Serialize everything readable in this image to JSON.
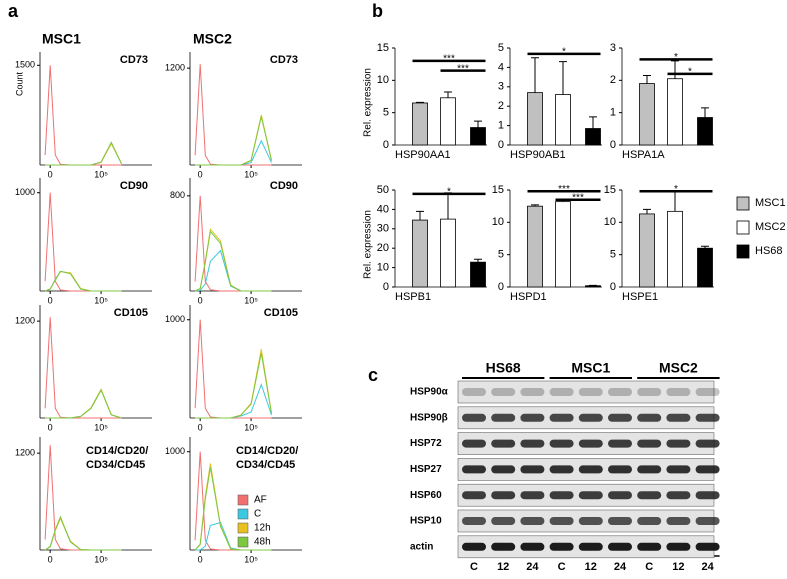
{
  "panel_labels": [
    "a",
    "b",
    "c"
  ],
  "flow_columns": [
    "MSC1",
    "MSC2"
  ],
  "chart_data": [
    {
      "type": "flow",
      "title": "CD73",
      "ylabel": "Count",
      "x": [
        -0.5,
        0,
        0.5,
        1,
        2,
        3,
        4,
        5,
        6,
        7
      ],
      "xlim": [
        -1,
        10
      ],
      "xticks": [
        0,
        {
          "value": 5,
          "label": "10⁵"
        }
      ],
      "ylim": [
        0,
        1700
      ],
      "yticks": [
        1500
      ],
      "series": [
        {
          "color": "#f07070",
          "values": [
            150,
            1500,
            150,
            10,
            0,
            0,
            0,
            0,
            0,
            0
          ]
        },
        {
          "color": "#3cc8e0",
          "values": [
            0,
            0,
            0,
            0,
            0,
            0,
            0,
            40,
            330,
            20
          ]
        },
        {
          "color": "#e8c020",
          "values": [
            0,
            0,
            0,
            0,
            0,
            0,
            0,
            40,
            320,
            20
          ]
        },
        {
          "color": "#7cc840",
          "values": [
            0,
            0,
            0,
            0,
            0,
            0,
            0,
            45,
            340,
            20
          ]
        }
      ]
    },
    {
      "type": "flow",
      "title": "CD73",
      "x": [
        -0.5,
        0,
        0.5,
        1,
        2,
        3,
        4,
        5,
        6,
        7
      ],
      "xlim": [
        -1,
        10
      ],
      "xticks": [
        0,
        {
          "value": 5,
          "label": "10⁵"
        }
      ],
      "ylim": [
        0,
        1400
      ],
      "yticks": [
        1200
      ],
      "series": [
        {
          "color": "#f07070",
          "values": [
            120,
            1250,
            120,
            10,
            0,
            0,
            0,
            0,
            0,
            0
          ]
        },
        {
          "color": "#3cc8e0",
          "values": [
            0,
            0,
            0,
            0,
            0,
            0,
            0,
            30,
            300,
            30
          ]
        },
        {
          "color": "#e8c020",
          "values": [
            0,
            0,
            0,
            0,
            0,
            0,
            0,
            60,
            620,
            60
          ]
        },
        {
          "color": "#7cc840",
          "values": [
            0,
            0,
            0,
            0,
            0,
            0,
            0,
            55,
            600,
            55
          ]
        }
      ]
    },
    {
      "type": "flow",
      "title": "CD90",
      "x": [
        -0.5,
        0,
        0.5,
        1,
        2,
        3,
        4,
        5,
        6,
        7
      ],
      "xlim": [
        -1,
        10
      ],
      "xticks": [
        0,
        {
          "value": 5,
          "label": "10⁵"
        }
      ],
      "ylim": [
        0,
        1150
      ],
      "yticks": [
        1000
      ],
      "series": [
        {
          "color": "#f07070",
          "values": [
            100,
            1000,
            100,
            10,
            0,
            0,
            0,
            0,
            0,
            0
          ]
        },
        {
          "color": "#3cc8e0",
          "values": [
            0,
            20,
            120,
            200,
            180,
            20,
            0,
            0,
            0,
            0
          ]
        },
        {
          "color": "#e8c020",
          "values": [
            0,
            20,
            115,
            195,
            185,
            25,
            0,
            0,
            0,
            0
          ]
        },
        {
          "color": "#7cc840",
          "values": [
            0,
            20,
            110,
            200,
            175,
            20,
            0,
            0,
            0,
            0
          ]
        }
      ]
    },
    {
      "type": "flow",
      "title": "CD90",
      "x": [
        -0.5,
        0,
        0.5,
        1,
        2,
        3,
        4,
        5,
        6,
        7
      ],
      "xlim": [
        -1,
        10
      ],
      "xticks": [
        0,
        {
          "value": 5,
          "label": "10⁵"
        }
      ],
      "ylim": [
        0,
        950
      ],
      "yticks": [
        800
      ],
      "series": [
        {
          "color": "#f07070",
          "values": [
            80,
            800,
            80,
            10,
            0,
            0,
            0,
            0,
            0,
            0
          ]
        },
        {
          "color": "#3cc8e0",
          "values": [
            0,
            5,
            60,
            250,
            340,
            40,
            0,
            0,
            0,
            0
          ]
        },
        {
          "color": "#e8c020",
          "values": [
            0,
            20,
            250,
            520,
            420,
            50,
            0,
            0,
            0,
            0
          ]
        },
        {
          "color": "#7cc840",
          "values": [
            0,
            20,
            240,
            500,
            400,
            45,
            0,
            0,
            0,
            0
          ]
        }
      ]
    },
    {
      "type": "flow",
      "title": "CD105",
      "x": [
        -0.5,
        0,
        0.5,
        1,
        2,
        3,
        4,
        5,
        6,
        7
      ],
      "xlim": [
        -1,
        10
      ],
      "xticks": [
        0,
        {
          "value": 5,
          "label": "10⁵"
        }
      ],
      "ylim": [
        0,
        1400
      ],
      "yticks": [
        1200
      ],
      "series": [
        {
          "color": "#f07070",
          "values": [
            120,
            1250,
            120,
            10,
            0,
            0,
            0,
            0,
            0,
            0
          ]
        },
        {
          "color": "#3cc8e0",
          "values": [
            0,
            0,
            0,
            0,
            0,
            20,
            120,
            350,
            40,
            0
          ]
        },
        {
          "color": "#e8c020",
          "values": [
            0,
            0,
            0,
            0,
            0,
            20,
            125,
            355,
            40,
            0
          ]
        },
        {
          "color": "#7cc840",
          "values": [
            0,
            0,
            0,
            0,
            0,
            20,
            118,
            345,
            40,
            0
          ]
        }
      ]
    },
    {
      "type": "flow",
      "title": "CD105",
      "x": [
        -0.5,
        0,
        0.5,
        1,
        2,
        3,
        4,
        5,
        6,
        7
      ],
      "xlim": [
        -1,
        10
      ],
      "xticks": [
        0,
        {
          "value": 5,
          "label": "10⁵"
        }
      ],
      "ylim": [
        0,
        1150
      ],
      "yticks": [
        1000
      ],
      "series": [
        {
          "color": "#f07070",
          "values": [
            100,
            1000,
            100,
            10,
            0,
            0,
            0,
            0,
            0,
            0
          ]
        },
        {
          "color": "#3cc8e0",
          "values": [
            0,
            0,
            0,
            0,
            0,
            0,
            20,
            60,
            340,
            30
          ]
        },
        {
          "color": "#e8c020",
          "values": [
            0,
            0,
            0,
            0,
            0,
            0,
            30,
            150,
            700,
            50
          ]
        },
        {
          "color": "#7cc840",
          "values": [
            0,
            0,
            0,
            0,
            0,
            0,
            28,
            140,
            660,
            45
          ]
        }
      ]
    },
    {
      "type": "flow",
      "title": [
        "CD14/CD20/",
        "CD34/CD45"
      ],
      "x": [
        -0.5,
        0,
        0.5,
        1,
        2,
        3,
        4,
        5,
        6,
        7
      ],
      "xlim": [
        -1,
        10
      ],
      "xticks": [
        0,
        {
          "value": 5,
          "label": "10⁵"
        }
      ],
      "ylim": [
        0,
        1400
      ],
      "yticks": [
        1200
      ],
      "series": [
        {
          "color": "#f07070",
          "values": [
            130,
            1300,
            130,
            15,
            0,
            0,
            0,
            0,
            0,
            0
          ]
        },
        {
          "color": "#3cc8e0",
          "values": [
            0,
            40,
            250,
            400,
            100,
            5,
            0,
            0,
            0,
            0
          ]
        },
        {
          "color": "#e8c020",
          "values": [
            0,
            40,
            240,
            390,
            110,
            5,
            0,
            0,
            0,
            0
          ]
        },
        {
          "color": "#7cc840",
          "values": [
            0,
            45,
            250,
            410,
            100,
            5,
            0,
            0,
            0,
            0
          ]
        }
      ]
    },
    {
      "type": "flow",
      "title": [
        "CD14/CD20/",
        "CD34/CD45"
      ],
      "x": [
        -0.5,
        0,
        0.5,
        1,
        2,
        3,
        4,
        5,
        6,
        7
      ],
      "xlim": [
        -1,
        10
      ],
      "xticks": [
        0,
        {
          "value": 5,
          "label": "10⁵"
        }
      ],
      "ylim": [
        0,
        1150
      ],
      "yticks": [
        1000
      ],
      "legend": "lower right",
      "series": [
        {
          "name": "AF",
          "color": "#f07070",
          "values": [
            100,
            1000,
            100,
            10,
            0,
            0,
            0,
            0,
            0,
            0
          ]
        },
        {
          "name": "C",
          "color": "#3cc8e0",
          "values": [
            0,
            0,
            40,
            250,
            280,
            20,
            0,
            0,
            0,
            0
          ]
        },
        {
          "name": "12h",
          "color": "#e8c020",
          "values": [
            0,
            60,
            550,
            880,
            250,
            10,
            0,
            0,
            0,
            0
          ]
        },
        {
          "name": "48h",
          "color": "#7cc840",
          "values": [
            0,
            55,
            520,
            840,
            240,
            10,
            0,
            0,
            0,
            0
          ]
        }
      ]
    },
    {
      "type": "bar",
      "title": "HSP90AA1",
      "ylabel": "Rel. expression",
      "ylim": [
        0,
        15
      ],
      "yticks": [
        0,
        5,
        10,
        15
      ],
      "series": [
        {
          "color": "#c0c0c0",
          "values": [
            6.5
          ],
          "errors": [
            0.1
          ]
        },
        {
          "color": "#ffffff",
          "values": [
            7.3
          ],
          "errors": [
            0.9
          ]
        },
        {
          "color": "#000000",
          "values": [
            2.7
          ],
          "errors": [
            1.0
          ]
        }
      ],
      "significance": [
        {
          "from": 0,
          "to": 2,
          "y": 13,
          "label": "***"
        },
        {
          "from": 1,
          "to": 2,
          "y": 11.5,
          "label": "***"
        }
      ]
    },
    {
      "type": "bar",
      "title": "HSP90AB1",
      "ylim": [
        0,
        5
      ],
      "yticks": [
        0,
        1,
        2,
        3,
        4,
        5
      ],
      "series": [
        {
          "color": "#c0c0c0",
          "values": [
            2.7
          ],
          "errors": [
            1.8
          ]
        },
        {
          "color": "#ffffff",
          "values": [
            2.6
          ],
          "errors": [
            1.7
          ]
        },
        {
          "color": "#000000",
          "values": [
            0.85
          ],
          "errors": [
            0.6
          ]
        }
      ],
      "significance": [
        {
          "from": 0,
          "to": 2,
          "y": 4.7,
          "label": "*"
        }
      ]
    },
    {
      "type": "bar",
      "title": "HSPA1A",
      "ylim": [
        0,
        3
      ],
      "yticks": [
        0,
        1,
        2,
        3
      ],
      "series": [
        {
          "color": "#c0c0c0",
          "values": [
            1.9
          ],
          "errors": [
            0.25
          ]
        },
        {
          "color": "#ffffff",
          "values": [
            2.05
          ],
          "errors": [
            0.55
          ]
        },
        {
          "color": "#000000",
          "values": [
            0.85
          ],
          "errors": [
            0.3
          ]
        }
      ],
      "significance": [
        {
          "from": 0,
          "to": 2,
          "y": 2.65,
          "label": "*"
        },
        {
          "from": 1,
          "to": 2,
          "y": 2.2,
          "label": "*"
        }
      ]
    },
    {
      "type": "bar",
      "title": "HSPB1",
      "ylabel": "Rel. expression",
      "ylim": [
        0,
        50
      ],
      "yticks": [
        0,
        10,
        20,
        30,
        40,
        50
      ],
      "series": [
        {
          "color": "#c0c0c0",
          "values": [
            34.5
          ],
          "errors": [
            4.5
          ]
        },
        {
          "color": "#ffffff",
          "values": [
            35
          ],
          "errors": [
            13.5
          ]
        },
        {
          "color": "#000000",
          "values": [
            12.8
          ],
          "errors": [
            1.5
          ]
        }
      ],
      "significance": [
        {
          "from": 0,
          "to": 2,
          "y": 48,
          "label": "*"
        }
      ]
    },
    {
      "type": "bar",
      "title": "HSPD1",
      "ylim": [
        0,
        15
      ],
      "yticks": [
        0,
        5,
        10,
        15
      ],
      "series": [
        {
          "color": "#c0c0c0",
          "values": [
            12.5
          ],
          "errors": [
            0.2
          ]
        },
        {
          "color": "#ffffff",
          "values": [
            13.2
          ],
          "errors": [
            0.4
          ]
        },
        {
          "color": "#000000",
          "values": [
            0.2
          ],
          "errors": [
            0.05
          ]
        }
      ],
      "significance": [
        {
          "from": 0,
          "to": 2,
          "y": 14.8,
          "label": "***"
        },
        {
          "from": 1,
          "to": 2,
          "y": 13.5,
          "label": "***"
        }
      ]
    },
    {
      "type": "bar",
      "title": "HSPE1",
      "ylim": [
        0,
        15
      ],
      "yticks": [
        0,
        5,
        10,
        15
      ],
      "legend": "right",
      "series": [
        {
          "name": "MSC1",
          "color": "#c0c0c0",
          "values": [
            11.3
          ],
          "errors": [
            0.7
          ]
        },
        {
          "name": "MSC2",
          "color": "#ffffff",
          "values": [
            11.7
          ],
          "errors": [
            3.2
          ]
        },
        {
          "name": "HS68",
          "color": "#000000",
          "values": [
            6
          ],
          "errors": [
            0.3
          ]
        }
      ],
      "significance": [
        {
          "from": 0,
          "to": 2,
          "y": 14.8,
          "label": "*"
        }
      ]
    }
  ],
  "blot": {
    "groups": [
      "HS68",
      "MSC1",
      "MSC2"
    ],
    "lanes": [
      "C",
      "12",
      "24",
      "C",
      "12",
      "24",
      "C",
      "12",
      "24"
    ],
    "rows": [
      "HSP90α",
      "HSP90β",
      "HSP72",
      "HSP27",
      "HSP60",
      "HSP10",
      "actin"
    ]
  }
}
